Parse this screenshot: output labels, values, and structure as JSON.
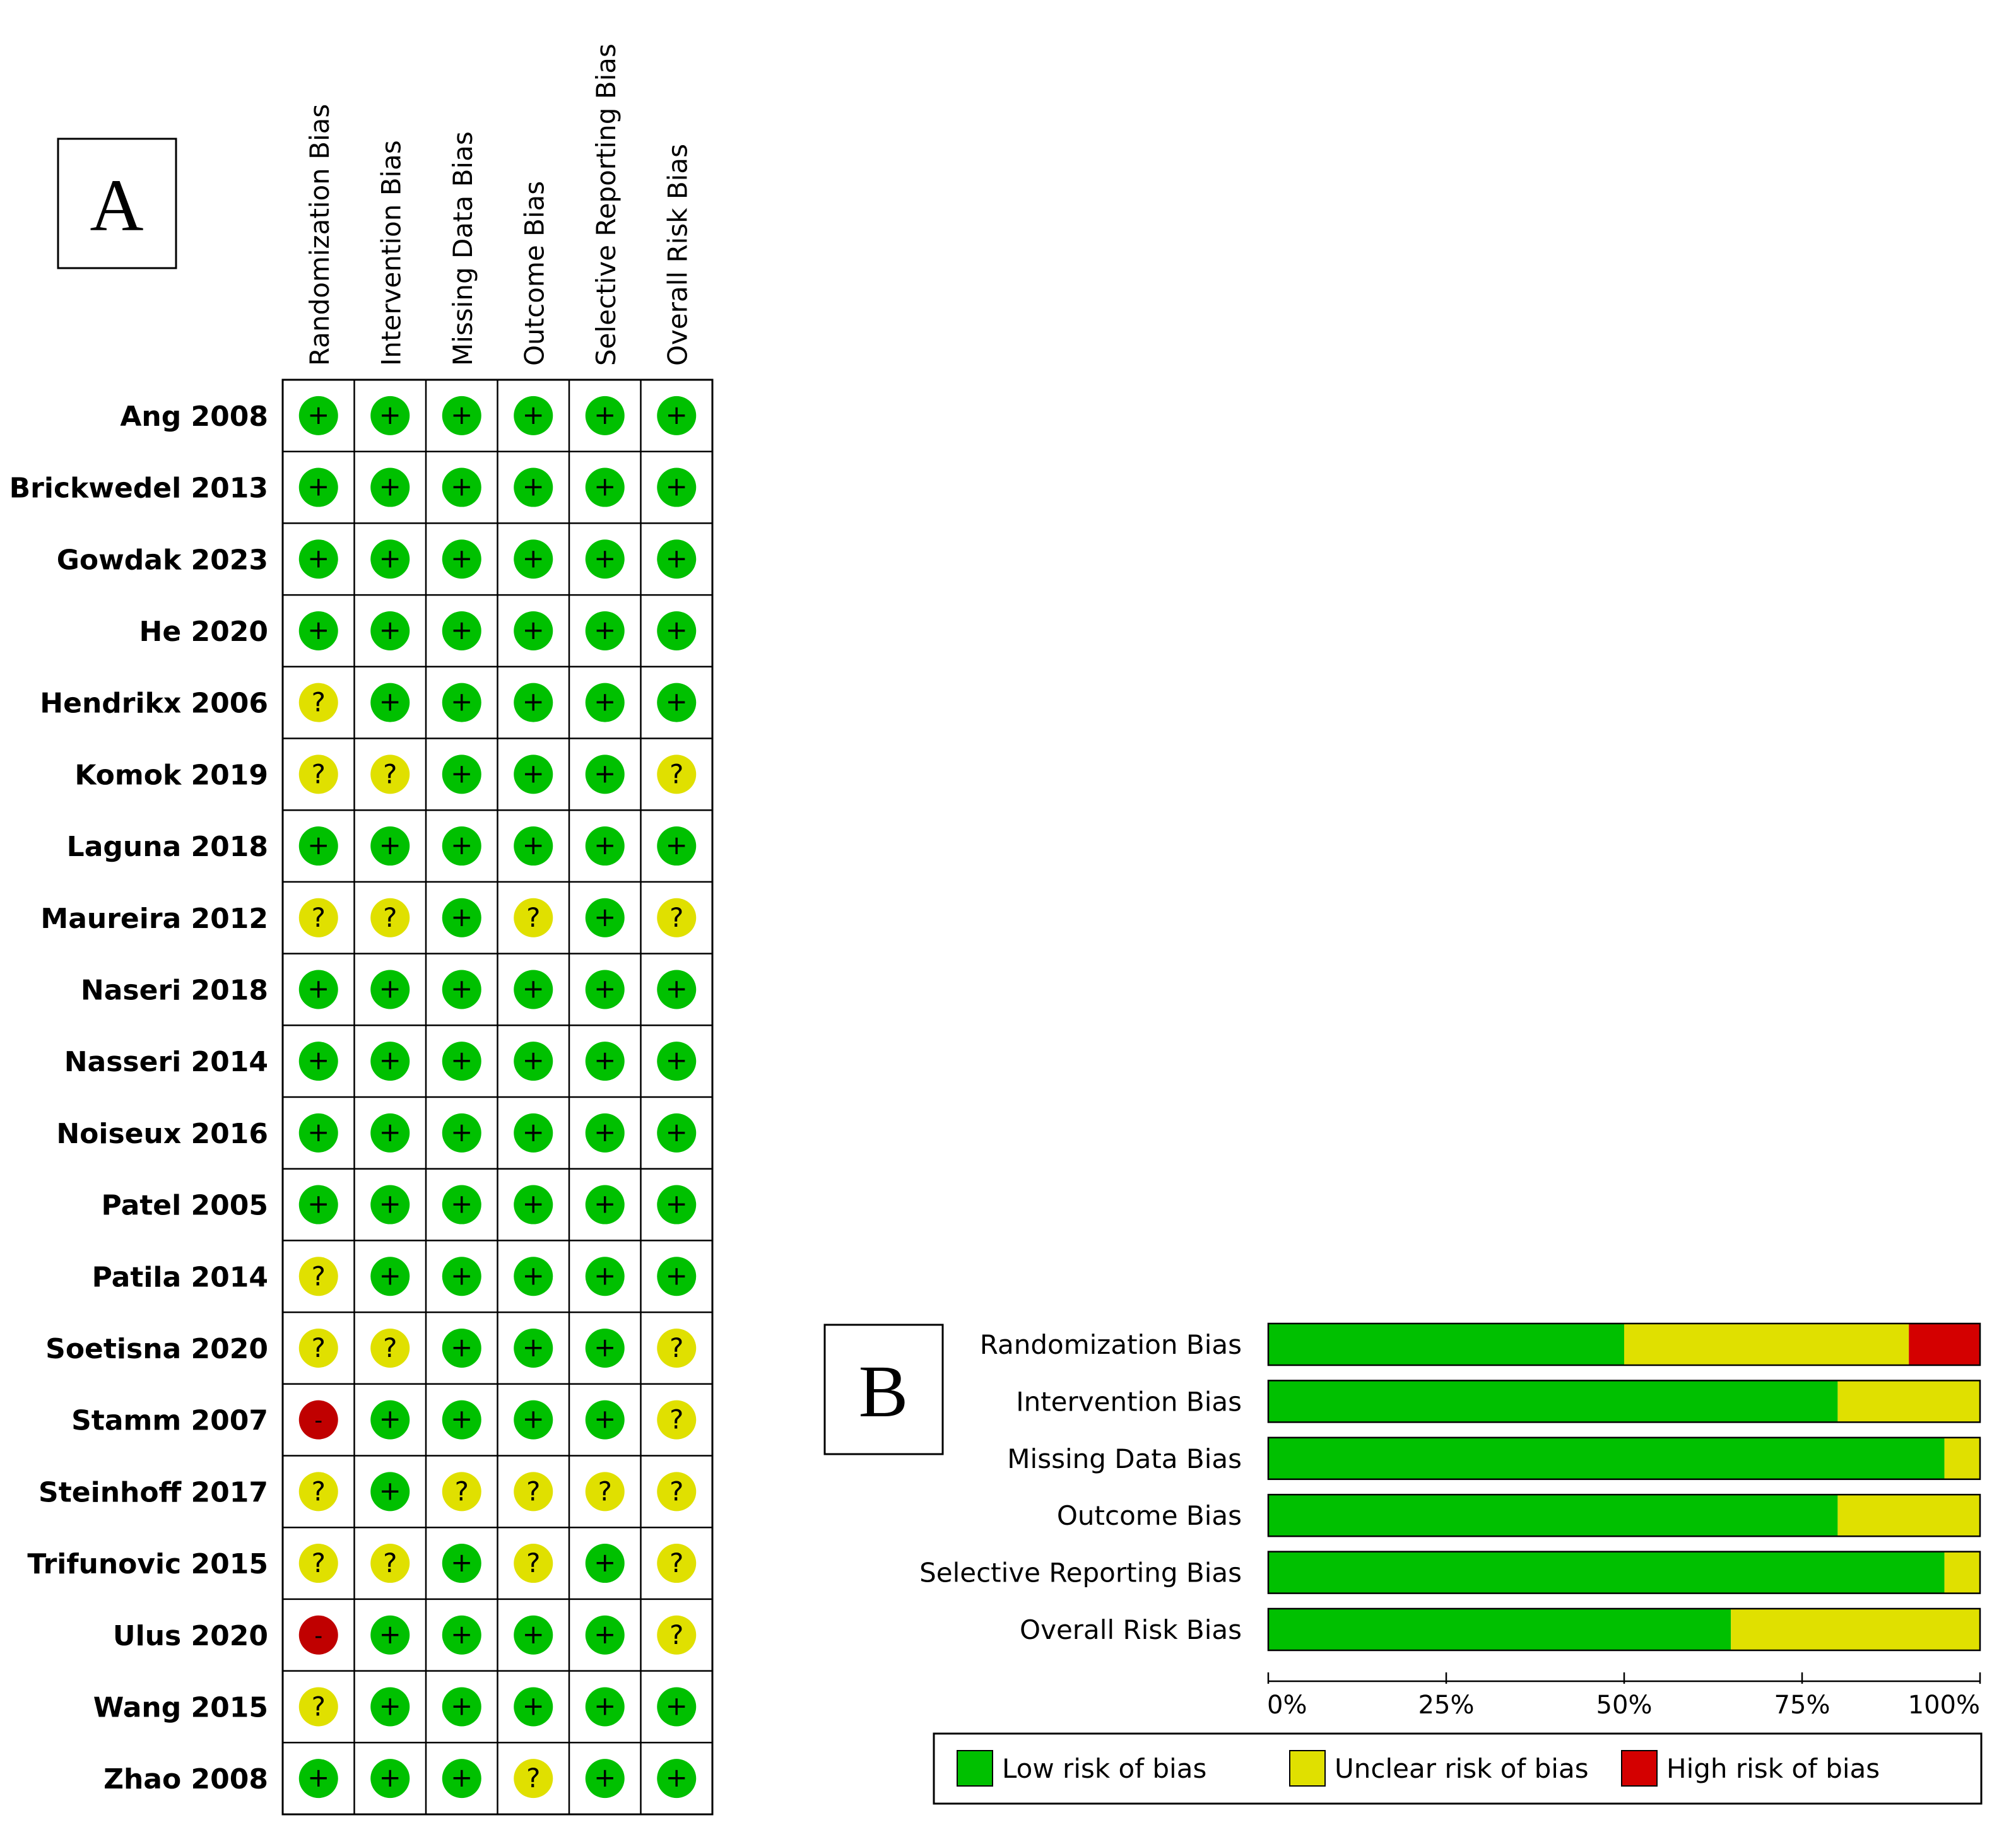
{
  "chart_data": [
    {
      "type": "table",
      "panel_label": "A",
      "columns": [
        "Randomization Bias",
        "Intervention Bias",
        "Missing Data Bias",
        "Outcome Bias",
        "Selective Reporting Bias",
        "Overall Risk Bias"
      ],
      "rows": [
        {
          "study": "Ang 2008",
          "judgements": [
            "+",
            "+",
            "+",
            "+",
            "+",
            "+"
          ]
        },
        {
          "study": "Brickwedel 2013",
          "judgements": [
            "+",
            "+",
            "+",
            "+",
            "+",
            "+"
          ]
        },
        {
          "study": "Gowdak 2023",
          "judgements": [
            "+",
            "+",
            "+",
            "+",
            "+",
            "+"
          ]
        },
        {
          "study": "He 2020",
          "judgements": [
            "+",
            "+",
            "+",
            "+",
            "+",
            "+"
          ]
        },
        {
          "study": "Hendrikx 2006",
          "judgements": [
            "?",
            "+",
            "+",
            "+",
            "+",
            "+"
          ]
        },
        {
          "study": "Komok 2019",
          "judgements": [
            "?",
            "?",
            "+",
            "+",
            "+",
            "?"
          ]
        },
        {
          "study": "Laguna 2018",
          "judgements": [
            "+",
            "+",
            "+",
            "+",
            "+",
            "+"
          ]
        },
        {
          "study": "Maureira 2012",
          "judgements": [
            "?",
            "?",
            "+",
            "?",
            "+",
            "?"
          ]
        },
        {
          "study": "Naseri 2018",
          "judgements": [
            "+",
            "+",
            "+",
            "+",
            "+",
            "+"
          ]
        },
        {
          "study": "Nasseri 2014",
          "judgements": [
            "+",
            "+",
            "+",
            "+",
            "+",
            "+"
          ]
        },
        {
          "study": "Noiseux 2016",
          "judgements": [
            "+",
            "+",
            "+",
            "+",
            "+",
            "+"
          ]
        },
        {
          "study": "Patel 2005",
          "judgements": [
            "+",
            "+",
            "+",
            "+",
            "+",
            "+"
          ]
        },
        {
          "study": "Patila 2014",
          "judgements": [
            "?",
            "+",
            "+",
            "+",
            "+",
            "+"
          ]
        },
        {
          "study": "Soetisna 2020",
          "judgements": [
            "?",
            "?",
            "+",
            "+",
            "+",
            "?"
          ]
        },
        {
          "study": "Stamm 2007",
          "judgements": [
            "-",
            "+",
            "+",
            "+",
            "+",
            "?"
          ]
        },
        {
          "study": "Steinhoff 2017",
          "judgements": [
            "?",
            "+",
            "?",
            "?",
            "?",
            "?"
          ]
        },
        {
          "study": "Trifunovic 2015",
          "judgements": [
            "?",
            "?",
            "+",
            "?",
            "+",
            "?"
          ]
        },
        {
          "study": "Ulus 2020",
          "judgements": [
            "-",
            "+",
            "+",
            "+",
            "+",
            "?"
          ]
        },
        {
          "study": "Wang 2015",
          "judgements": [
            "?",
            "+",
            "+",
            "+",
            "+",
            "+"
          ]
        },
        {
          "study": "Zhao 2008",
          "judgements": [
            "+",
            "+",
            "+",
            "?",
            "+",
            "+"
          ]
        }
      ]
    },
    {
      "type": "bar",
      "panel_label": "B",
      "orientation": "horizontal",
      "stacked": true,
      "categories": [
        "Randomization Bias",
        "Intervention Bias",
        "Missing Data Bias",
        "Outcome Bias",
        "Selective Reporting Bias",
        "Overall Risk Bias"
      ],
      "series": [
        {
          "name": "Low risk of bias",
          "color": "#00c000",
          "values": [
            50,
            80,
            95,
            80,
            95,
            65
          ]
        },
        {
          "name": "Unclear risk of bias",
          "color": "#e0e000",
          "values": [
            40,
            20,
            5,
            20,
            5,
            35
          ]
        },
        {
          "name": "High risk of bias",
          "color": "#d40000",
          "values": [
            10,
            0,
            0,
            0,
            0,
            0
          ]
        }
      ],
      "xlim": [
        0,
        100
      ],
      "ticks": [
        0,
        25,
        50,
        75,
        100
      ],
      "tick_labels": [
        "0%",
        "25%",
        "50%",
        "75%",
        "100%"
      ],
      "legend_position": "bottom"
    }
  ],
  "symbol_colors": {
    "+": "#00c000",
    "?": "#e0e000",
    "-": "#c00000"
  }
}
